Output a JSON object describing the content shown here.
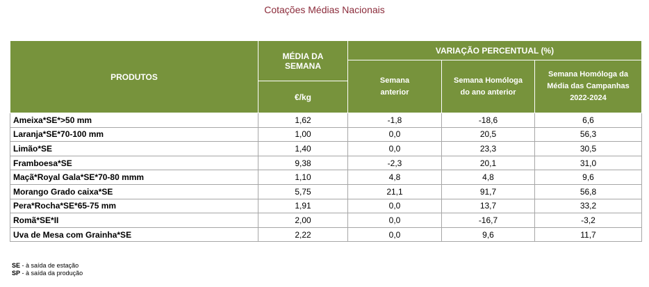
{
  "title": "Cotações Médias Nacionais",
  "table": {
    "headers": {
      "product": "PRODUTOS",
      "avg": "MÉDIA DA SEMANA",
      "unit": "€/kg",
      "variation": "VARIAÇÃO PERCENTUAL (%)",
      "sub": [
        "Semana anterior",
        "Semana Homóloga do ano anterior",
        "Semana Homóloga da Média das Campanhas 2022-2024"
      ]
    },
    "rows": [
      [
        "Ameixa*SE*>50 mm",
        "1,62",
        "-1,8",
        "-18,6",
        "6,6"
      ],
      [
        "Laranja*SE*70-100 mm",
        "1,00",
        "0,0",
        "20,5",
        "56,3"
      ],
      [
        "Limão*SE",
        "1,40",
        "0,0",
        "23,3",
        "30,5"
      ],
      [
        "Framboesa*SE",
        "9,38",
        "-2,3",
        "20,1",
        "31,0"
      ],
      [
        "Maçã*Royal Gala*SE*70-80 mmm",
        "1,10",
        "4,8",
        "4,8",
        "9,6"
      ],
      [
        "Morango Grado caixa*SE",
        "5,75",
        "21,1",
        "91,7",
        "56,8"
      ],
      [
        "Pera*Rocha*SE*65-75 mm",
        "1,91",
        "0,0",
        "13,7",
        "33,2"
      ],
      [
        "Romã*SE*II",
        "2,00",
        "0,0",
        "-16,7",
        "-3,2"
      ],
      [
        "Uva de Mesa com Grainha*SE",
        "2,22",
        "0,0",
        "9,6",
        "11,7"
      ]
    ]
  },
  "footnotes": [
    {
      "abbr": "SE",
      "text": "- à saída de estação"
    },
    {
      "abbr": "SP",
      "text": "- à saída da produção"
    }
  ]
}
